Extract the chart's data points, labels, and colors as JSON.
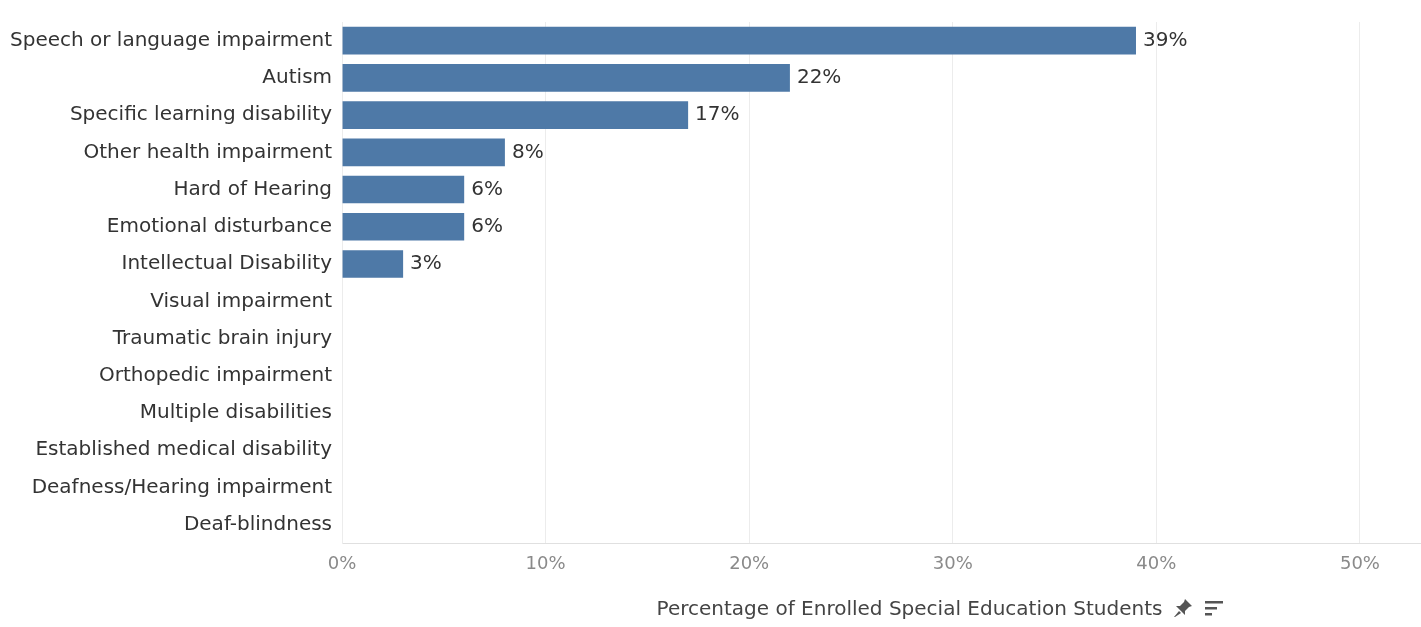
{
  "chart_data": {
    "type": "bar",
    "orientation": "horizontal",
    "xlabel": "Percentage of Enrolled Special Education Students",
    "categories": [
      "Speech or language impairment",
      "Autism",
      "Specific learning disability",
      "Other health impairment",
      "Hard of Hearing",
      "Emotional disturbance",
      "Intellectual Disability",
      "Visual impairment",
      "Traumatic brain injury",
      "Orthopedic impairment",
      "Multiple disabilities",
      "Established medical disability",
      "Deafness/Hearing impairment",
      "Deaf-blindness"
    ],
    "values": [
      39,
      22,
      17,
      8,
      6,
      6,
      3,
      null,
      null,
      null,
      null,
      null,
      null,
      null
    ],
    "value_labels": [
      "39%",
      "22%",
      "17%",
      "8%",
      "6%",
      "6%",
      "3%",
      null,
      null,
      null,
      null,
      null,
      null,
      null
    ],
    "color": "#4e79a7",
    "xlim": [
      0,
      53
    ],
    "xticks": [
      {
        "value": 0,
        "label": "0%"
      },
      {
        "value": 10,
        "label": "10%"
      },
      {
        "value": 20,
        "label": "20%"
      },
      {
        "value": 30,
        "label": "30%"
      },
      {
        "value": 40,
        "label": "40%"
      },
      {
        "value": 50,
        "label": "50%"
      }
    ],
    "grid": "x",
    "legend": false
  }
}
